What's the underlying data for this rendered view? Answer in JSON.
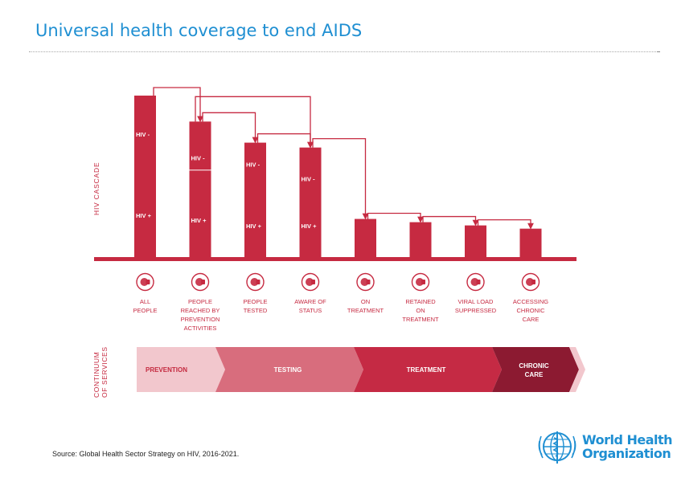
{
  "title": "Universal health coverage to end AIDS",
  "source": "Source: Global Health Sector Strategy on HIV, 2016-2021.",
  "logo": {
    "line1": "World Health",
    "line2": "Organization",
    "icon": "who-emblem-icon"
  },
  "cascade": {
    "axis_label": "HIV CASCADE",
    "hiv_neg_label": "HIV -",
    "hiv_pos_label": "HIV +",
    "bars": [
      {
        "id": "all-people",
        "value": 100,
        "hiv_split": 0.32,
        "label": [
          "ALL",
          "PEOPLE"
        ],
        "icon": "people-icon"
      },
      {
        "id": "prevention",
        "value": 84,
        "hiv_split": 0.48,
        "label": [
          "PEOPLE",
          "REACHED BY",
          "PREVENTION",
          "ACTIVITIES"
        ],
        "icon": "person-search-icon"
      },
      {
        "id": "tested",
        "value": 71,
        "hiv_split": 0.26,
        "label": [
          "PEOPLE",
          "TESTED"
        ],
        "icon": "test-tube-icon"
      },
      {
        "id": "aware",
        "value": 68,
        "hiv_split": 0.38,
        "label": [
          "AWARE OF",
          "STATUS"
        ],
        "icon": "person-info-icon"
      },
      {
        "id": "on-treatment",
        "value": 24,
        "label": [
          "ON",
          "TREATMENT"
        ],
        "icon": "pill-bottle-icon"
      },
      {
        "id": "retained",
        "value": 22,
        "label": [
          "RETAINED",
          "ON",
          "TREATMENT"
        ],
        "icon": "calendar-icon"
      },
      {
        "id": "viral-load",
        "value": 20,
        "label": [
          "VIRAL LOAD",
          "SUPPRESSED"
        ],
        "icon": "virus-icon"
      },
      {
        "id": "chronic-care",
        "value": 18,
        "label": [
          "ACCESSING",
          "CHRONIC",
          "CARE"
        ],
        "icon": "umbrella-icon"
      }
    ]
  },
  "continuum": {
    "axis_label": [
      "CONTINUUM",
      "OF SERVICES"
    ],
    "stages": [
      {
        "label": [
          "PREVENTION"
        ],
        "color": "#f2c7cd",
        "text_color": "#c42a3f"
      },
      {
        "label": [
          "TESTING"
        ],
        "color": "#d86d7d",
        "text_color": "#ffffff"
      },
      {
        "label": [
          "TREATMENT"
        ],
        "color": "#c52a44",
        "text_color": "#ffffff"
      },
      {
        "label": [
          "CHRONIC",
          "CARE"
        ],
        "color": "#8c1a31",
        "text_color": "#ffffff"
      }
    ]
  },
  "colors": {
    "bar": "#c62a41",
    "axis": "#c62a41",
    "title": "#1f8fd2",
    "label": "#c62a41"
  }
}
